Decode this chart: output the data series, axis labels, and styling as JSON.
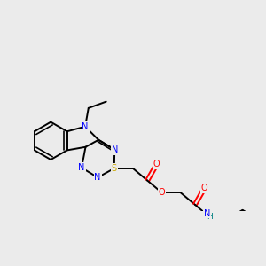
{
  "background_color": "#ebebeb",
  "atom_colors": {
    "N": "#0000ff",
    "O": "#ff0000",
    "S": "#ccaa00",
    "H": "#008080",
    "C": "#000000"
  },
  "bond_color": "#000000",
  "bond_width": 1.4,
  "figsize": [
    3.0,
    3.0
  ],
  "dpi": 100
}
